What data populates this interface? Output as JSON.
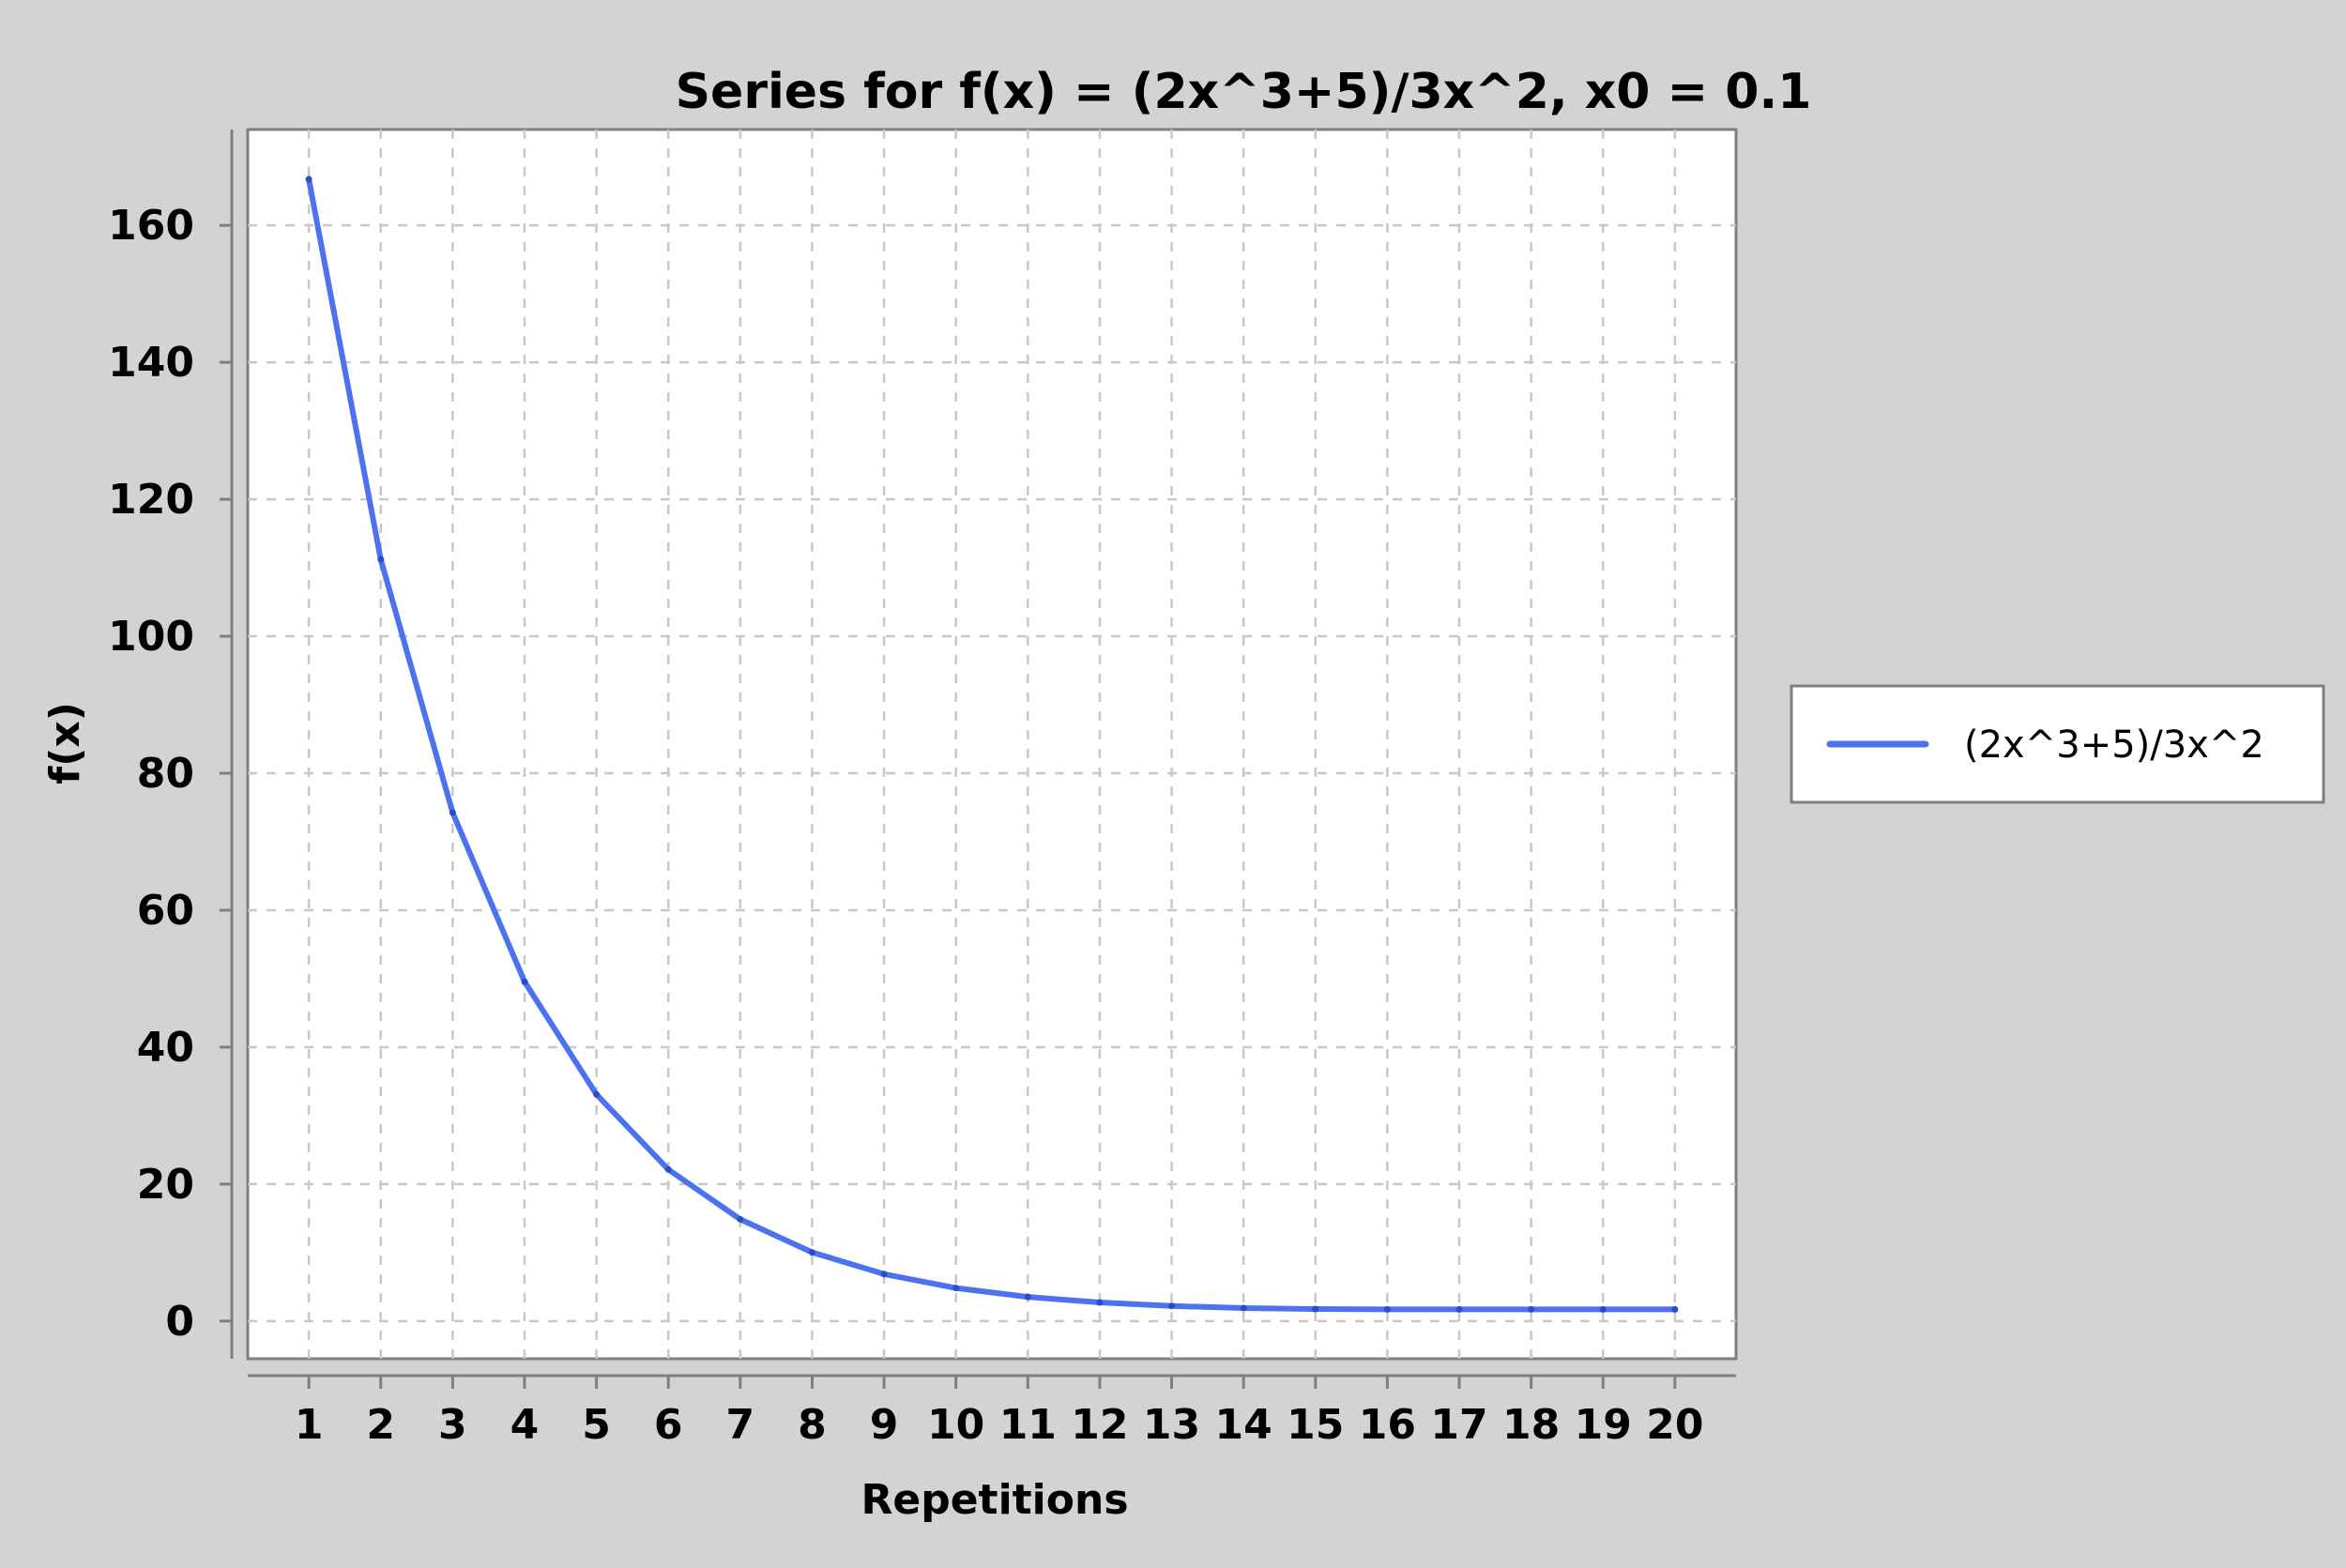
{
  "chart_data": {
    "type": "line",
    "title": "Series for f(x) = (2x^3+5)/3x^2, x0 = 0.1",
    "xlabel": "Repetitions",
    "ylabel": "f(x)",
    "x": [
      1,
      2,
      3,
      4,
      5,
      6,
      7,
      8,
      9,
      10,
      11,
      12,
      13,
      14,
      15,
      16,
      17,
      18,
      19,
      20
    ],
    "series": [
      {
        "name": "(2x^3+5)/3x^2",
        "color": "#4d72f0",
        "values": [
          166.73,
          111.25,
          74.24,
          49.55,
          33.1,
          22.14,
          14.86,
          10.04,
          6.86,
          4.83,
          3.53,
          2.72,
          2.2,
          1.9,
          1.76,
          1.71,
          1.71,
          1.71,
          1.71,
          1.71
        ]
      }
    ],
    "xlim": [
      0.15,
      20.85
    ],
    "ylim": [
      -5.5,
      174
    ],
    "yticks": [
      0,
      20,
      40,
      60,
      80,
      100,
      120,
      140,
      160
    ],
    "xticks": [
      1,
      2,
      3,
      4,
      5,
      6,
      7,
      8,
      9,
      10,
      11,
      12,
      13,
      14,
      15,
      16,
      17,
      18,
      19,
      20
    ],
    "grid": true,
    "legend_position": "right"
  }
}
